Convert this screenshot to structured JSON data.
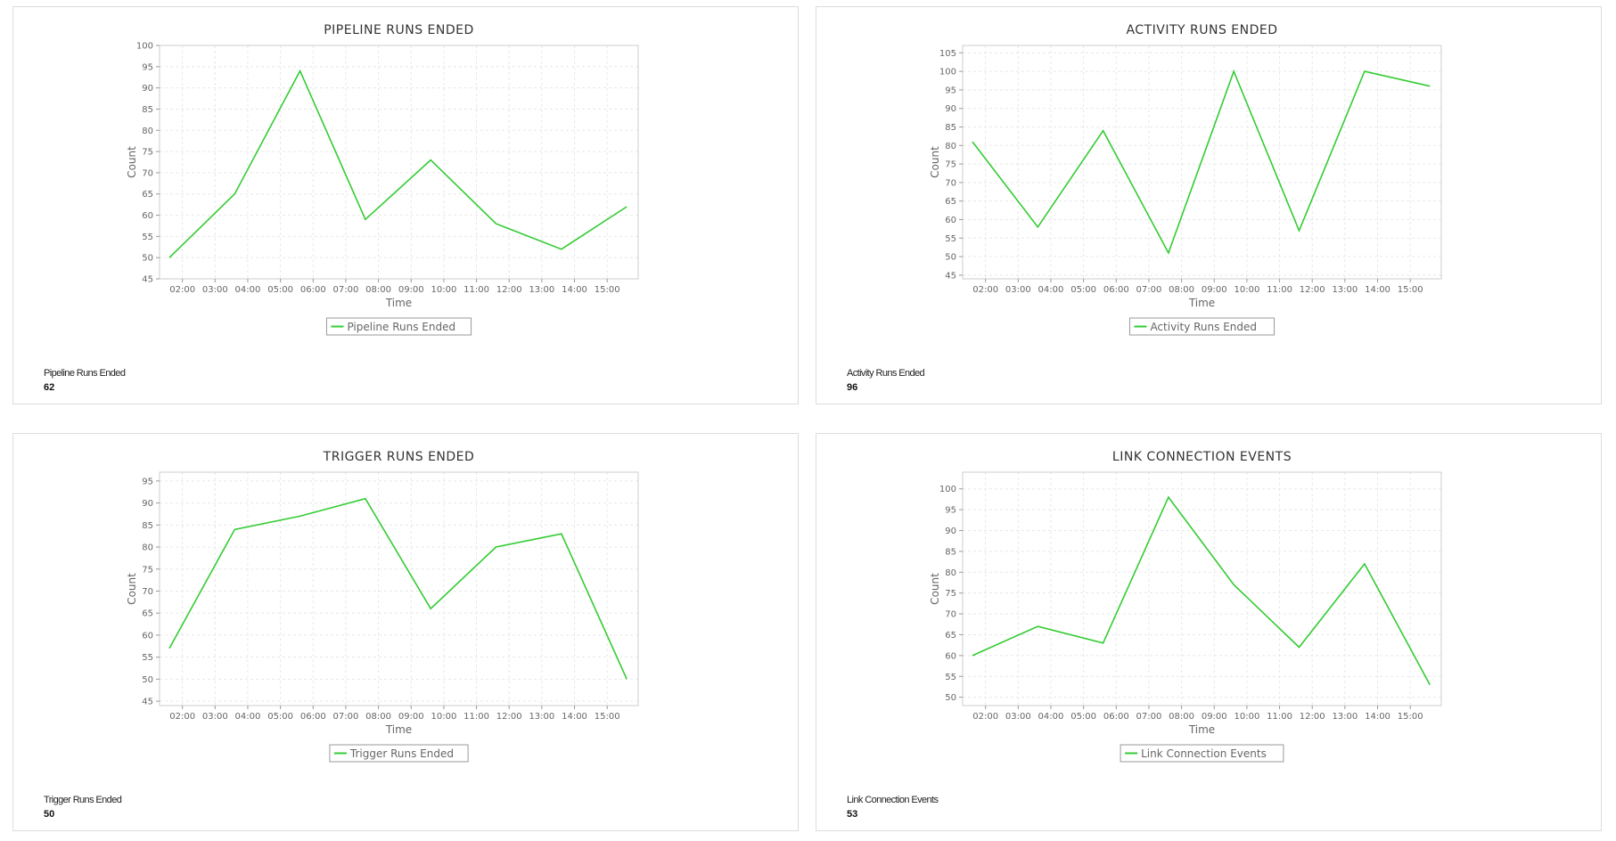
{
  "panels": [
    {
      "summary": {
        "label": "Pipeline Runs Ended",
        "value": "62"
      },
      "chart_data": {
        "type": "line",
        "title": "PIPELINE RUNS ENDED",
        "xlabel": "Time",
        "ylabel": "Count",
        "categories": [
          "02:00",
          "03:00",
          "04:00",
          "05:00",
          "06:00",
          "07:00",
          "08:00",
          "09:00",
          "10:00",
          "11:00",
          "12:00",
          "13:00",
          "14:00",
          "15:00"
        ],
        "x": [
          1.6,
          3.6,
          5.6,
          7.6,
          9.6,
          11.6,
          13.6,
          15.6
        ],
        "series": [
          {
            "name": "Pipeline Runs Ended",
            "values": [
              50,
              65,
              94,
              59,
              73,
              58,
              52,
              62
            ],
            "color": "#33cc33"
          }
        ],
        "ylim": [
          45,
          100
        ],
        "yticks": [
          45,
          50,
          55,
          60,
          65,
          70,
          75,
          80,
          85,
          90,
          95,
          100
        ],
        "xlim": [
          1.3,
          15.95
        ],
        "grid": true,
        "legend": "bottom"
      }
    },
    {
      "summary": {
        "label": "Activity Runs Ended",
        "value": "96"
      },
      "chart_data": {
        "type": "line",
        "title": "ACTIVITY RUNS ENDED",
        "xlabel": "Time",
        "ylabel": "Count",
        "categories": [
          "02:00",
          "03:00",
          "04:00",
          "05:00",
          "06:00",
          "07:00",
          "08:00",
          "09:00",
          "10:00",
          "11:00",
          "12:00",
          "13:00",
          "14:00",
          "15:00"
        ],
        "x": [
          1.6,
          3.6,
          5.6,
          7.6,
          9.6,
          11.6,
          13.6,
          15.6
        ],
        "series": [
          {
            "name": "Activity Runs Ended",
            "values": [
              81,
              58,
              84,
              51,
              100,
              57,
              100,
              96
            ],
            "color": "#33cc33"
          }
        ],
        "ylim": [
          44,
          107
        ],
        "yticks": [
          45,
          50,
          55,
          60,
          65,
          70,
          75,
          80,
          85,
          90,
          95,
          100,
          105
        ],
        "xlim": [
          1.3,
          15.95
        ],
        "grid": true,
        "legend": "bottom"
      }
    },
    {
      "summary": {
        "label": "Trigger Runs Ended",
        "value": "50"
      },
      "chart_data": {
        "type": "line",
        "title": "TRIGGER RUNS ENDED",
        "xlabel": "Time",
        "ylabel": "Count",
        "categories": [
          "02:00",
          "03:00",
          "04:00",
          "05:00",
          "06:00",
          "07:00",
          "08:00",
          "09:00",
          "10:00",
          "11:00",
          "12:00",
          "13:00",
          "14:00",
          "15:00"
        ],
        "x": [
          1.6,
          3.6,
          5.6,
          7.6,
          9.6,
          11.6,
          13.6,
          15.6
        ],
        "series": [
          {
            "name": "Trigger Runs Ended",
            "values": [
              57,
              84,
              87,
              91,
              66,
              80,
              83,
              50
            ],
            "color": "#33cc33"
          }
        ],
        "ylim": [
          44,
          97
        ],
        "yticks": [
          45,
          50,
          55,
          60,
          65,
          70,
          75,
          80,
          85,
          90,
          95
        ],
        "xlim": [
          1.3,
          15.95
        ],
        "grid": true,
        "legend": "bottom"
      }
    },
    {
      "summary": {
        "label": "Link Connection Events",
        "value": "53"
      },
      "chart_data": {
        "type": "line",
        "title": "LINK CONNECTION EVENTS",
        "xlabel": "Time",
        "ylabel": "Count",
        "categories": [
          "02:00",
          "03:00",
          "04:00",
          "05:00",
          "06:00",
          "07:00",
          "08:00",
          "09:00",
          "10:00",
          "11:00",
          "12:00",
          "13:00",
          "14:00",
          "15:00"
        ],
        "x": [
          1.6,
          3.6,
          5.6,
          7.6,
          9.6,
          11.6,
          13.6,
          15.6
        ],
        "series": [
          {
            "name": "Link Connection Events",
            "values": [
              60,
              67,
              63,
              98,
              77,
              62,
              82,
              53
            ],
            "color": "#33cc33"
          }
        ],
        "ylim": [
          48,
          104
        ],
        "yticks": [
          50,
          55,
          60,
          65,
          70,
          75,
          80,
          85,
          90,
          95,
          100
        ],
        "xlim": [
          1.3,
          15.95
        ],
        "grid": true,
        "legend": "bottom"
      }
    }
  ]
}
